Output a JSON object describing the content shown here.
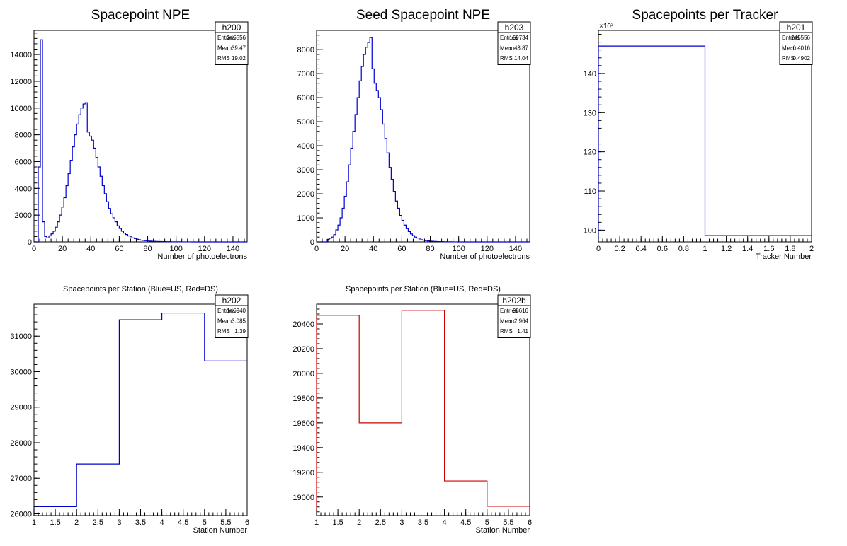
{
  "chart_data": [
    {
      "id": "h200",
      "type": "histogram",
      "title": "Spacepoint NPE",
      "xlabel": "Number of photoelectrons",
      "ylabel": "",
      "color": "#0000cc",
      "xlim": [
        0,
        150
      ],
      "ylim": [
        0,
        15800
      ],
      "x_ticks": [
        0,
        20,
        40,
        60,
        80,
        100,
        120,
        140
      ],
      "y_ticks": [
        0,
        2000,
        4000,
        6000,
        8000,
        10000,
        12000,
        14000
      ],
      "y_multiplier": "",
      "bin_edges_start": 0,
      "bin_width": 1.5,
      "values": [
        0,
        0,
        5600,
        15100,
        1500,
        400,
        300,
        450,
        600,
        800,
        1100,
        1500,
        2000,
        2600,
        3300,
        4200,
        5100,
        6100,
        7100,
        8000,
        8800,
        9500,
        10000,
        10300,
        10400,
        8200,
        7900,
        7600,
        7000,
        6300,
        5600,
        4900,
        4200,
        3600,
        3000,
        2500,
        2100,
        1800,
        1500,
        1200,
        1000,
        800,
        650,
        550,
        450,
        380,
        300,
        250,
        200,
        160,
        130,
        110,
        90,
        70,
        60,
        50,
        40,
        35,
        30,
        25,
        20,
        18,
        15,
        12,
        10,
        8,
        7,
        6,
        5,
        4,
        3,
        3,
        2,
        2,
        1,
        1,
        1,
        1,
        0,
        0,
        0,
        0,
        0,
        0,
        0,
        0,
        0,
        0,
        0,
        0,
        0,
        0,
        0,
        0,
        0,
        0,
        0,
        0,
        0,
        0
      ],
      "stats": {
        "name": "h200",
        "rows": [
          [
            "Entries",
            "245556"
          ],
          [
            "Mean",
            "39.47"
          ],
          [
            "RMS",
            "19.02"
          ]
        ]
      }
    },
    {
      "id": "h203",
      "type": "histogram",
      "title": "Seed Spacepoint NPE",
      "xlabel": "Number of photoelectrons",
      "ylabel": "",
      "color": "#0000cc",
      "xlim": [
        0,
        150
      ],
      "ylim": [
        0,
        8800
      ],
      "x_ticks": [
        0,
        20,
        40,
        60,
        80,
        100,
        120,
        140
      ],
      "y_ticks": [
        0,
        1000,
        2000,
        3000,
        4000,
        5000,
        6000,
        7000,
        8000
      ],
      "y_multiplier": "",
      "bin_edges_start": 0,
      "bin_width": 1.5,
      "values": [
        0,
        0,
        0,
        0,
        0,
        100,
        150,
        200,
        300,
        500,
        700,
        1000,
        1400,
        1900,
        2500,
        3200,
        3900,
        4600,
        5300,
        6000,
        6700,
        7300,
        7800,
        8100,
        8300,
        8500,
        7200,
        6600,
        6300,
        6000,
        5500,
        4900,
        4300,
        3700,
        3100,
        2600,
        2100,
        1700,
        1400,
        1100,
        900,
        700,
        550,
        430,
        330,
        260,
        200,
        160,
        120,
        90,
        70,
        55,
        40,
        30,
        25,
        20,
        15,
        12,
        10,
        8,
        6,
        5,
        4,
        3,
        2,
        2,
        1,
        1,
        1,
        0,
        0,
        0,
        0,
        0,
        0,
        0,
        0,
        0,
        0,
        0,
        0,
        0,
        0,
        0,
        0,
        0,
        0,
        0,
        0,
        0,
        0,
        0,
        0,
        0,
        0,
        0,
        0,
        0,
        0,
        0
      ],
      "stats": {
        "name": "h203",
        "rows": [
          [
            "Entries",
            "169734"
          ],
          [
            "Mean",
            "43.87"
          ],
          [
            "RMS",
            "14.04"
          ]
        ]
      }
    },
    {
      "id": "h201",
      "type": "histogram",
      "title": "Spacepoints per Tracker",
      "xlabel": "Tracker Number",
      "ylabel": "",
      "color": "#0000cc",
      "xlim": [
        0,
        2
      ],
      "ylim": [
        97,
        151
      ],
      "x_ticks": [
        0,
        0.2,
        0.4,
        0.6,
        0.8,
        1,
        1.2,
        1.4,
        1.6,
        1.8,
        2
      ],
      "y_ticks": [
        100,
        110,
        120,
        130,
        140
      ],
      "y_multiplier": "×10³",
      "bin_edges_start": 0,
      "bin_width": 1,
      "values": [
        147,
        98.6
      ],
      "stats": {
        "name": "h201",
        "rows": [
          [
            "Entries",
            "245556"
          ],
          [
            "Mean",
            "0.4016"
          ],
          [
            "RMS",
            "0.4902"
          ]
        ]
      }
    },
    {
      "id": "h202",
      "type": "histogram",
      "title": "Spacepoints per Station (Blue=US, Red=DS)",
      "xlabel": "Station Number",
      "ylabel": "",
      "color": "#0000cc",
      "xlim": [
        1,
        6
      ],
      "ylim": [
        25950,
        31900
      ],
      "x_ticks": [
        1,
        1.5,
        2,
        2.5,
        3,
        3.5,
        4,
        4.5,
        5,
        5.5,
        6
      ],
      "y_ticks": [
        26000,
        27000,
        28000,
        29000,
        30000,
        31000
      ],
      "y_multiplier": "",
      "bin_edges_start": 1,
      "bin_width": 1,
      "values": [
        26200,
        27400,
        31460,
        31650,
        30300
      ],
      "stats": {
        "name": "h202",
        "rows": [
          [
            "Entries",
            "146940"
          ],
          [
            "Mean",
            "3.085"
          ],
          [
            "RMS",
            "1.39"
          ]
        ]
      }
    },
    {
      "id": "h202b",
      "type": "histogram",
      "title": "Spacepoints per Station (Blue=US, Red=DS)",
      "xlabel": "Station Number",
      "ylabel": "",
      "color": "#cc0000",
      "xlim": [
        1,
        6
      ],
      "ylim": [
        18850,
        20560
      ],
      "x_ticks": [
        1,
        1.5,
        2,
        2.5,
        3,
        3.5,
        4,
        4.5,
        5,
        5.5,
        6
      ],
      "y_ticks": [
        19000,
        19200,
        19400,
        19600,
        19800,
        20000,
        20200,
        20400
      ],
      "y_multiplier": "",
      "bin_edges_start": 1,
      "bin_width": 1,
      "values": [
        20470,
        19600,
        20510,
        19130,
        18925
      ],
      "stats": {
        "name": "h202b",
        "rows": [
          [
            "Entries",
            "98616"
          ],
          [
            "Mean",
            "2.964"
          ],
          [
            "RMS",
            "1.41"
          ]
        ]
      }
    }
  ]
}
